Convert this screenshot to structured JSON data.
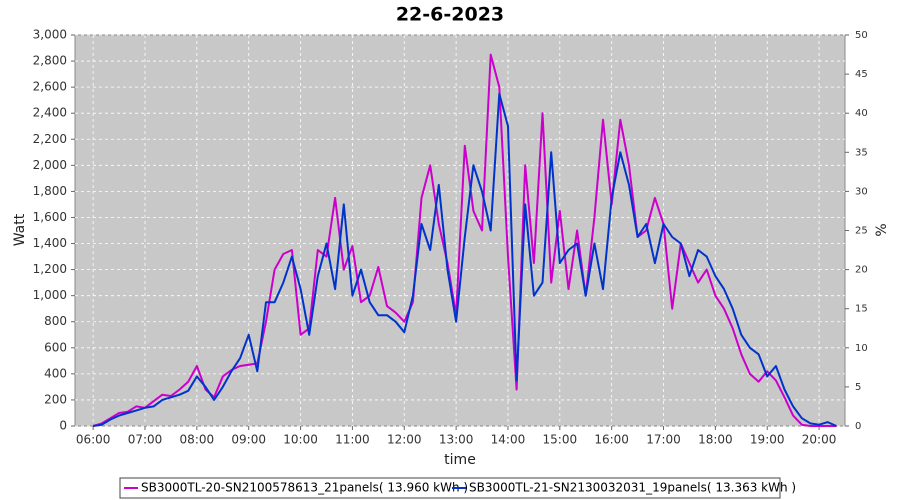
{
  "chart_data": {
    "type": "line",
    "title": "22-6-2023",
    "x_label": "time",
    "y_label": "Watt",
    "y2_label": "%",
    "xlim": [
      "05:39",
      "20:30"
    ],
    "xticks": [
      "06:00",
      "07:00",
      "08:00",
      "09:00",
      "10:00",
      "11:00",
      "12:00",
      "13:00",
      "14:00",
      "15:00",
      "16:00",
      "17:00",
      "18:00",
      "19:00",
      "20:00"
    ],
    "ylim": [
      0,
      3000
    ],
    "yticks": [
      0,
      200,
      400,
      600,
      800,
      {
        "value": 1000,
        "label": "1,000"
      },
      {
        "value": 1200,
        "label": "1,200"
      },
      {
        "value": 1400,
        "label": "1,400"
      },
      {
        "value": 1600,
        "label": "1,600"
      },
      {
        "value": 1800,
        "label": "1,800"
      },
      {
        "value": 2000,
        "label": "2,000"
      },
      {
        "value": 2200,
        "label": "2,200"
      },
      {
        "value": 2400,
        "label": "2,400"
      },
      {
        "value": 2600,
        "label": "2,600"
      },
      {
        "value": 2800,
        "label": "2,800"
      },
      {
        "value": 3000,
        "label": "3,000"
      }
    ],
    "y2lim": [
      0,
      50
    ],
    "y2ticks": [
      0,
      5,
      10,
      15,
      20,
      25,
      30,
      35,
      40,
      45,
      50
    ],
    "grid": true,
    "legend": "bottom",
    "x": [
      "06:00",
      "06:10",
      "06:20",
      "06:30",
      "06:40",
      "06:50",
      "07:00",
      "07:10",
      "07:20",
      "07:30",
      "07:40",
      "07:50",
      "08:00",
      "08:10",
      "08:20",
      "08:30",
      "08:40",
      "08:50",
      "09:00",
      "09:10",
      "09:20",
      "09:30",
      "09:40",
      "09:50",
      "10:00",
      "10:10",
      "10:20",
      "10:30",
      "10:40",
      "10:50",
      "11:00",
      "11:10",
      "11:20",
      "11:30",
      "11:40",
      "11:50",
      "12:00",
      "12:10",
      "12:20",
      "12:30",
      "12:40",
      "12:50",
      "13:00",
      "13:10",
      "13:20",
      "13:30",
      "13:40",
      "13:50",
      "14:00",
      "14:10",
      "14:20",
      "14:30",
      "14:40",
      "14:50",
      "15:00",
      "15:10",
      "15:20",
      "15:30",
      "15:40",
      "15:50",
      "16:00",
      "16:10",
      "16:20",
      "16:30",
      "16:40",
      "16:50",
      "17:00",
      "17:10",
      "17:20",
      "17:30",
      "17:40",
      "17:50",
      "18:00",
      "18:10",
      "18:20",
      "18:30",
      "18:40",
      "18:50",
      "19:00",
      "19:10",
      "19:20",
      "19:30",
      "19:40",
      "19:50",
      "20:00",
      "20:10",
      "20:20"
    ],
    "series": [
      {
        "name": "SB3000TL-20-SN2100578613_21panels( 13.960 kWh )",
        "color": "#cc00cc",
        "values": [
          0,
          20,
          60,
          100,
          110,
          150,
          140,
          190,
          240,
          230,
          280,
          340,
          460,
          280,
          220,
          380,
          430,
          460,
          470,
          480,
          800,
          1200,
          1320,
          1350,
          700,
          750,
          1350,
          1300,
          1750,
          1200,
          1380,
          950,
          1000,
          1220,
          920,
          870,
          800,
          950,
          1750,
          2000,
          1550,
          1250,
          850,
          2150,
          1650,
          1500,
          2850,
          2600,
          1300,
          280,
          2000,
          1250,
          2400,
          1100,
          1650,
          1050,
          1500,
          1000,
          1600,
          2350,
          1700,
          2350,
          2000,
          1450,
          1500,
          1750,
          1550,
          900,
          1400,
          1250,
          1100,
          1200,
          1000,
          900,
          750,
          550,
          400,
          340,
          420,
          350,
          220,
          80,
          10,
          0,
          0,
          0,
          0
        ]
      },
      {
        "name": "SB3000TL-21-SN2130032031_19panels( 13.363 kWh )",
        "color": "#0033cc",
        "values": [
          0,
          10,
          50,
          80,
          100,
          120,
          140,
          150,
          200,
          220,
          240,
          270,
          380,
          300,
          200,
          300,
          420,
          520,
          700,
          420,
          950,
          950,
          1100,
          1300,
          1050,
          700,
          1150,
          1400,
          1050,
          1700,
          1000,
          1200,
          950,
          850,
          850,
          800,
          720,
          1000,
          1550,
          1350,
          1850,
          1200,
          800,
          1450,
          2000,
          1800,
          1500,
          2550,
          2300,
          350,
          1700,
          1000,
          1100,
          2100,
          1250,
          1350,
          1400,
          1000,
          1400,
          1050,
          1750,
          2100,
          1850,
          1450,
          1550,
          1250,
          1550,
          1450,
          1400,
          1150,
          1350,
          1300,
          1150,
          1050,
          900,
          700,
          600,
          550,
          380,
          460,
          280,
          150,
          60,
          20,
          10,
          30,
          0
        ]
      }
    ]
  }
}
